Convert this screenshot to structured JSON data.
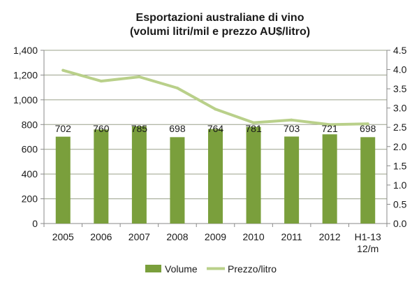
{
  "colors": {
    "bar": "#7a9f3c",
    "line": "#b9d08a",
    "plot_bg": "#ffffff",
    "grid": "#9aa08a",
    "axis": "#8a8a8a"
  },
  "chart_data": {
    "type": "bar",
    "title_lines": [
      "Esportazioni australiane di vino",
      "(volumi litri/mil e prezzo AU$/litro)"
    ],
    "categories": [
      [
        "2005"
      ],
      [
        "2006"
      ],
      [
        "2007"
      ],
      [
        "2008"
      ],
      [
        "2009"
      ],
      [
        "2010"
      ],
      [
        "2011"
      ],
      [
        "2012"
      ],
      [
        "H1-13",
        "12/m"
      ]
    ],
    "series": [
      {
        "name": "Volume",
        "type": "bar",
        "axis": "left",
        "values": [
          702,
          760,
          785,
          698,
          764,
          781,
          703,
          721,
          698
        ]
      },
      {
        "name": "Prezzo/litro",
        "type": "line",
        "axis": "right",
        "values": [
          3.98,
          3.7,
          3.81,
          3.52,
          2.97,
          2.62,
          2.69,
          2.57,
          2.59
        ]
      }
    ],
    "y_left": {
      "ylim": [
        0,
        1400
      ],
      "ticks": [
        "0",
        "200",
        "400",
        "600",
        "800",
        "1,000",
        "1,200",
        "1,400"
      ]
    },
    "y_right": {
      "ylim": [
        0,
        4.5
      ],
      "ticks": [
        "0.0",
        "0.5",
        "1.0",
        "1.5",
        "2.0",
        "2.5",
        "3.0",
        "3.5",
        "4.0",
        "4.5"
      ]
    },
    "data_labels": [
      "702",
      "760",
      "785",
      "698",
      "764",
      "781",
      "703",
      "721",
      "698"
    ],
    "grid": true,
    "legend_position": "bottom"
  }
}
